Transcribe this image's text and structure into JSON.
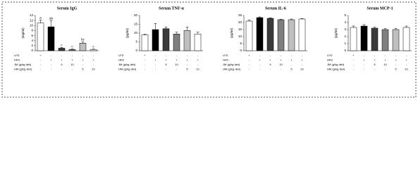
{
  "chart_data": [
    {
      "type": "bar",
      "title": "Serum IgG",
      "y_label": "(mg/ml)",
      "categories": [
        null,
        null,
        null,
        null,
        null,
        null
      ],
      "values": [
        11,
        9.5,
        1,
        0.5,
        3,
        0.5
      ],
      "errors": [
        1.2,
        2.5,
        0.3,
        0.2,
        0.5,
        0.2
      ],
      "letters": [
        "a",
        "ab",
        "c",
        "c",
        "bc",
        "c"
      ],
      "colors": [
        "#ffffff",
        "#000000",
        "#3a3a3a",
        "#7f7f7f",
        "#bfbfbf",
        "#ffffff"
      ],
      "ylim": [
        0,
        14
      ],
      "yticks": [
        0,
        2,
        4,
        6,
        8,
        10,
        12,
        14
      ],
      "treatments": [
        {
          "label": "LFD",
          "values": [
            "+",
            "-",
            "-",
            "-",
            "-",
            "-"
          ]
        },
        {
          "label": "HFD",
          "values": [
            "-",
            "+",
            "+",
            "+",
            "+",
            "+"
          ]
        },
        {
          "label": "JM (g/kg diet)",
          "values": [
            "-",
            "-",
            "5",
            "10",
            "-",
            "-"
          ]
        },
        {
          "label": "HM (g/kg diet)",
          "values": [
            "-",
            "-",
            "-",
            "-",
            "5",
            "10"
          ]
        }
      ]
    },
    {
      "type": "bar",
      "title": "Serum TNF-α",
      "y_label": "(pg/ml)",
      "categories": [
        null,
        null,
        null,
        null,
        null,
        null
      ],
      "values": [
        9,
        12,
        12.5,
        9.5,
        11.5,
        9.5
      ],
      "errors": [
        0.5,
        3.5,
        1,
        1,
        2,
        1
      ],
      "colors": [
        "#ffffff",
        "#000000",
        "#3a3a3a",
        "#7f7f7f",
        "#bfbfbf",
        "#ffffff"
      ],
      "ylim": [
        0,
        20
      ],
      "yticks": [
        0,
        5,
        10,
        15,
        20
      ],
      "treatments": [
        {
          "label": "LFD",
          "values": [
            "+",
            "-",
            "-",
            "-",
            "-",
            "-"
          ]
        },
        {
          "label": "HFD",
          "values": [
            "-",
            "+",
            "+",
            "+",
            "+",
            "+"
          ]
        },
        {
          "label": "JM (g/kg diet)",
          "values": [
            "-",
            "-",
            "5",
            "10",
            "-",
            "-"
          ]
        },
        {
          "label": "HM (g/kg diet)",
          "values": [
            "-",
            "-",
            "-",
            "-",
            "5",
            "10"
          ]
        }
      ]
    },
    {
      "type": "bar",
      "title": "Serum IL-6",
      "y_label": "(pg/ml)",
      "categories": [
        null,
        null,
        null,
        null,
        null,
        null
      ],
      "values": [
        21,
        23.5,
        23,
        22,
        22,
        22.5
      ],
      "errors": [
        0.7,
        0.5,
        0.4,
        0.4,
        0.5,
        0.4
      ],
      "colors": [
        "#ffffff",
        "#000000",
        "#3a3a3a",
        "#7f7f7f",
        "#bfbfbf",
        "#ffffff"
      ],
      "ylim": [
        0,
        25
      ],
      "yticks": [
        0,
        5,
        10,
        15,
        20,
        25
      ],
      "treatments": [
        {
          "label": "LFD",
          "values": [
            "+",
            "-",
            "-",
            "-",
            "-",
            "-"
          ]
        },
        {
          "label": "HFD",
          "values": [
            "-",
            "+",
            "+",
            "+",
            "+",
            "+"
          ]
        },
        {
          "label": "JM (g/kg diet)",
          "values": [
            "-",
            "-",
            "5",
            "10",
            "-",
            "-"
          ]
        },
        {
          "label": "HM (g/kg diet)",
          "values": [
            "-",
            "-",
            "-",
            "-",
            "5",
            "10"
          ]
        }
      ]
    },
    {
      "type": "bar",
      "title": "Serum MCP-1",
      "y_label": "(pg/ml)",
      "categories": [
        null,
        null,
        null,
        null,
        null,
        null
      ],
      "values": [
        3.3,
        3.5,
        3.2,
        3.0,
        3.0,
        3.3
      ],
      "errors": [
        0.2,
        0.2,
        0.15,
        0.15,
        0.15,
        0.2
      ],
      "colors": [
        "#ffffff",
        "#000000",
        "#3a3a3a",
        "#7f7f7f",
        "#bfbfbf",
        "#ffffff"
      ],
      "ylim": [
        0,
        5
      ],
      "yticks": [
        0,
        1,
        2,
        3,
        4,
        5
      ],
      "treatments": [
        {
          "label": "LFD",
          "values": [
            "+",
            "-",
            "-",
            "-",
            "-",
            "-"
          ]
        },
        {
          "label": "HFD",
          "values": [
            "-",
            "+",
            "+",
            "+",
            "+",
            "+"
          ]
        },
        {
          "label": "JM (g/kg diet)",
          "values": [
            "-",
            "-",
            "5",
            "10",
            "-",
            "-"
          ]
        },
        {
          "label": "HM (g/kg diet)",
          "values": [
            "-",
            "-",
            "-",
            "-",
            "5",
            "10"
          ]
        }
      ]
    }
  ]
}
